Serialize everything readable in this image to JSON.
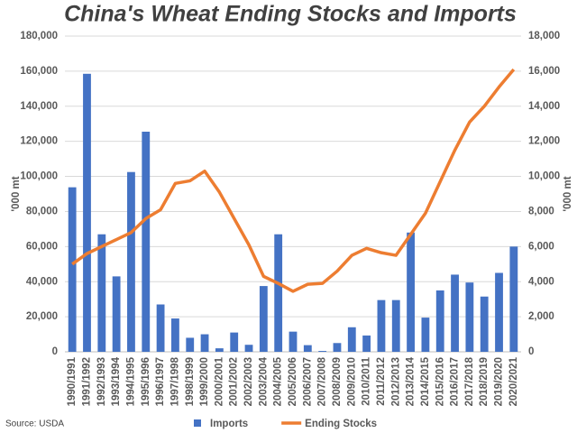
{
  "chart_data": {
    "type": "bar_line",
    "title": "China's Wheat Ending Stocks and Imports",
    "source": "Source: USDA",
    "y_label": "'000 mt",
    "y2_label": "'000 mt",
    "categories": [
      "1990/1991",
      "1991/1992",
      "1992/1993",
      "1993/1994",
      "1994/1995",
      "1995/1996",
      "1996/1997",
      "1997/1998",
      "1998/1999",
      "1999/2000",
      "2000/2001",
      "2001/2002",
      "2002/2003",
      "2003/2004",
      "2004/2005",
      "2005/2006",
      "2006/2007",
      "2007/2008",
      "2008/2009",
      "2009/2010",
      "2010/2011",
      "2011/2012",
      "2012/2013",
      "2013/2014",
      "2014/2015",
      "2015/2016",
      "2016/2017",
      "2017/2018",
      "2018/2019",
      "2019/2020",
      "2020/2021"
    ],
    "series": [
      {
        "name": "Imports",
        "type": "bar",
        "axis": "y2",
        "color": "#4472c4",
        "values": [
          9380,
          15850,
          6700,
          4300,
          10250,
          12550,
          2700,
          1900,
          800,
          1000,
          200,
          1100,
          400,
          3750,
          6700,
          1150,
          380,
          50,
          500,
          1400,
          930,
          2950,
          2950,
          6800,
          1950,
          3500,
          4400,
          3950,
          3150,
          4500,
          6000
        ]
      },
      {
        "name": "Ending Stocks",
        "type": "line",
        "axis": "y",
        "color": "#ed7d31",
        "values": [
          50000,
          56000,
          60000,
          64000,
          68000,
          76000,
          81000,
          96000,
          97500,
          103000,
          91000,
          76000,
          61000,
          43000,
          39000,
          34500,
          38500,
          39000,
          46000,
          55000,
          59000,
          56500,
          55000,
          67000,
          79000,
          97000,
          115000,
          131000,
          140000,
          151000,
          161000
        ]
      }
    ],
    "ylim": [
      0,
      180000
    ],
    "yticks": [
      0,
      {
        "value": 20000,
        "label": "20,000"
      },
      {
        "value": 40000,
        "label": "40,000"
      },
      {
        "value": 60000,
        "label": "60,000"
      },
      {
        "value": 80000,
        "label": "80,000"
      },
      {
        "value": 100000,
        "label": "100,000"
      },
      {
        "value": 120000,
        "label": "120,000"
      },
      {
        "value": 140000,
        "label": "140,000"
      },
      {
        "value": 160000,
        "label": "160,000"
      },
      {
        "value": 180000,
        "label": "180,000"
      }
    ],
    "y2lim": [
      0,
      18000
    ],
    "y2ticks": [
      0,
      {
        "value": 2000,
        "label": "2,000"
      },
      {
        "value": 4000,
        "label": "4,000"
      },
      {
        "value": 6000,
        "label": "6,000"
      },
      {
        "value": 8000,
        "label": "8,000"
      },
      {
        "value": 10000,
        "label": "10,000"
      },
      {
        "value": 12000,
        "label": "12,000"
      },
      {
        "value": 14000,
        "label": "14,000"
      },
      {
        "value": 16000,
        "label": "16,000"
      },
      {
        "value": 18000,
        "label": "18,000"
      }
    ],
    "grid": true
  }
}
